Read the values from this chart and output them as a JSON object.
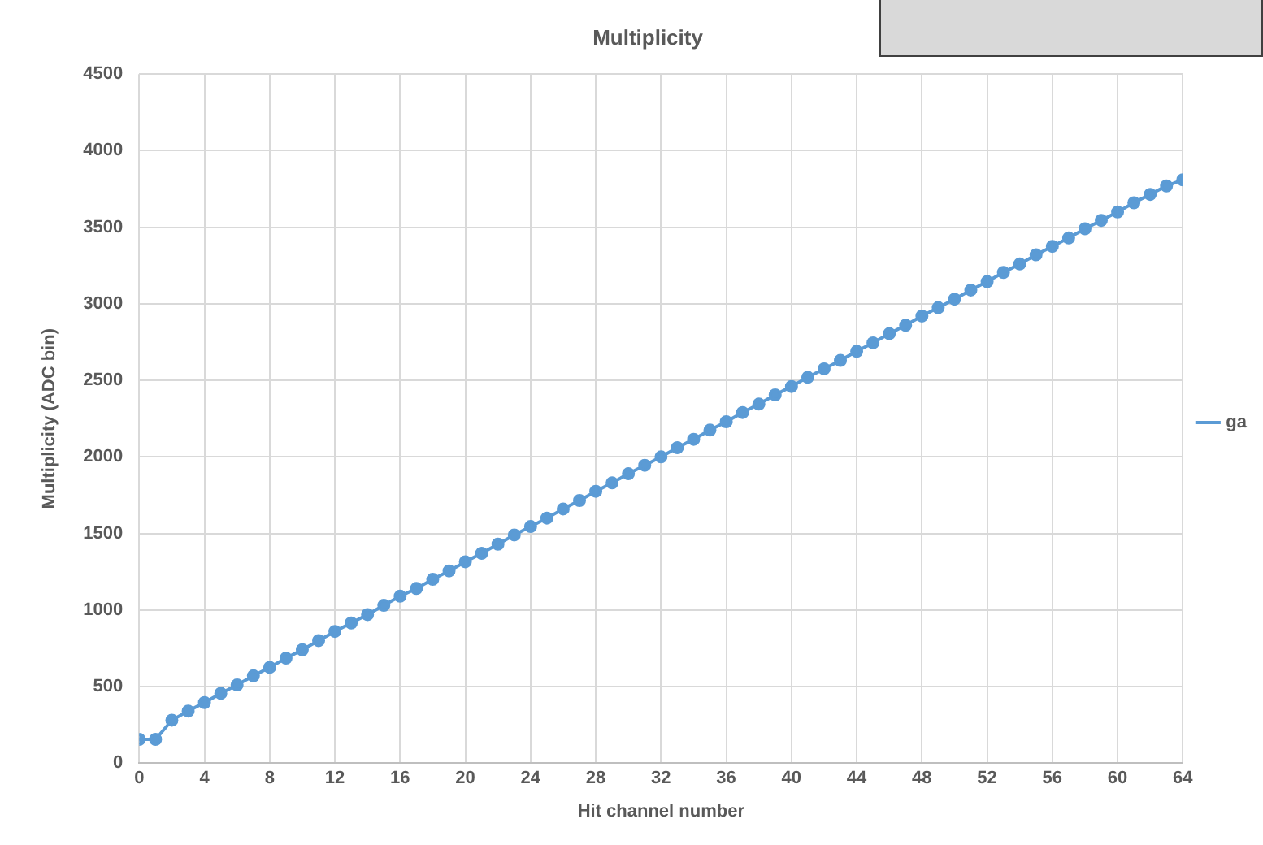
{
  "chart_data": {
    "type": "line",
    "title": "Multiplicity",
    "xlabel": "Hit channel number",
    "ylabel": "Multiplicity (ADC bin)",
    "x": [
      0,
      1,
      2,
      3,
      4,
      5,
      6,
      7,
      8,
      9,
      10,
      11,
      12,
      13,
      14,
      15,
      16,
      17,
      18,
      19,
      20,
      21,
      22,
      23,
      24,
      25,
      26,
      27,
      28,
      29,
      30,
      31,
      32,
      33,
      34,
      35,
      36,
      37,
      38,
      39,
      40,
      41,
      42,
      43,
      44,
      45,
      46,
      47,
      48,
      49,
      50,
      51,
      52,
      53,
      54,
      55,
      56,
      57,
      58,
      59,
      60,
      61,
      62,
      63,
      64
    ],
    "series": [
      {
        "name": "ga",
        "color": "#5b9bd5",
        "values": [
          155,
          155,
          280,
          340,
          395,
          455,
          510,
          570,
          625,
          685,
          740,
          800,
          860,
          915,
          970,
          1030,
          1090,
          1140,
          1200,
          1255,
          1315,
          1370,
          1430,
          1490,
          1545,
          1600,
          1660,
          1715,
          1775,
          1830,
          1890,
          1945,
          2000,
          2060,
          2115,
          2175,
          2230,
          2290,
          2345,
          2405,
          2460,
          2520,
          2575,
          2630,
          2690,
          2745,
          2805,
          2860,
          2920,
          2975,
          3030,
          3090,
          3145,
          3205,
          3260,
          3320,
          3375,
          3430,
          3490,
          3545,
          3600,
          3660,
          3715,
          3770,
          3810
        ]
      }
    ],
    "xlim": [
      0,
      64
    ],
    "xticks": [
      0,
      4,
      8,
      12,
      16,
      20,
      24,
      28,
      32,
      36,
      40,
      44,
      48,
      52,
      56,
      60,
      64
    ],
    "ylim": [
      0,
      4500
    ],
    "yticks": [
      0,
      500,
      1000,
      1500,
      2000,
      2500,
      3000,
      3500,
      4000,
      4500
    ],
    "grid": true,
    "legend": "right",
    "marker": "circle",
    "line_style": "solid"
  }
}
